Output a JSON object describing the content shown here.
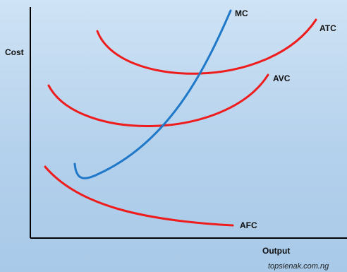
{
  "chart_data": {
    "type": "line",
    "title": "",
    "ylabel": "Cost",
    "xlabel": "Output",
    "grid": false,
    "series": [
      {
        "name": "MC",
        "color": "#1f78c8"
      },
      {
        "name": "ATC",
        "color": "#ee1c1c"
      },
      {
        "name": "AVC",
        "color": "#ee1c1c"
      },
      {
        "name": "AFC",
        "color": "#ee1c1c"
      }
    ]
  },
  "watermark": "topsienak.com.ng"
}
